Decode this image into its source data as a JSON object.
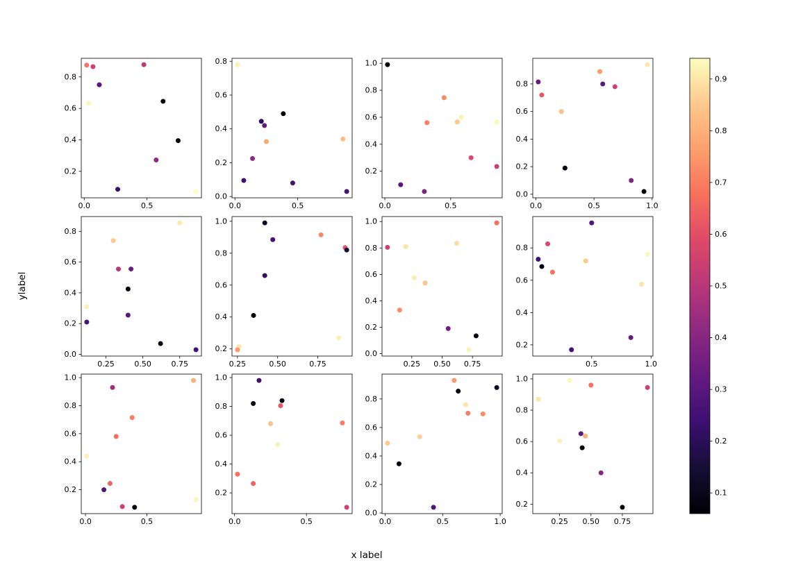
{
  "figure": {
    "background": "#ffffff"
  },
  "chart_data": {
    "type": "scatter",
    "title": "",
    "xlabel": "x label",
    "ylabel": "ylabel",
    "layout": {
      "rows": 3,
      "cols": 4,
      "grid": false,
      "shared_colorbar": true
    },
    "colorbar": {
      "position": "right",
      "colormap": "magma",
      "ticks": [
        0.1,
        0.2,
        0.3,
        0.4,
        0.5,
        0.6,
        0.7,
        0.8,
        0.9
      ],
      "tick_labels": [
        "0.1",
        "0.2",
        "0.3",
        "0.4",
        "0.5",
        "0.6",
        "0.7",
        "0.8",
        "0.9"
      ],
      "colormap_stops": [
        {
          "t": 0.0,
          "color": "#000004"
        },
        {
          "t": 0.1,
          "color": "#140e36"
        },
        {
          "t": 0.2,
          "color": "#3b0f70"
        },
        {
          "t": 0.3,
          "color": "#641a80"
        },
        {
          "t": 0.4,
          "color": "#8c2981"
        },
        {
          "t": 0.5,
          "color": "#b73779"
        },
        {
          "t": 0.6,
          "color": "#de4968"
        },
        {
          "t": 0.7,
          "color": "#f7705c"
        },
        {
          "t": 0.8,
          "color": "#fe9f6d"
        },
        {
          "t": 0.9,
          "color": "#fec98d"
        },
        {
          "t": 1.0,
          "color": "#fcfdbf"
        }
      ]
    },
    "subplots": [
      {
        "row": 0,
        "col": 0,
        "xticks": {
          "values": [
            0.0,
            0.5
          ],
          "labels": [
            "0.0",
            "0.5"
          ]
        },
        "yticks": {
          "values": [
            0.2,
            0.4,
            0.6,
            0.8
          ],
          "labels": [
            "0.2",
            "0.4",
            "0.6",
            "0.8"
          ]
        },
        "points": [
          {
            "x": 0.02,
            "y": 0.875,
            "c": 0.68
          },
          {
            "x": 0.07,
            "y": 0.865,
            "c": 0.55
          },
          {
            "x": 0.12,
            "y": 0.75,
            "c": 0.3
          },
          {
            "x": 0.035,
            "y": 0.632,
            "c": 0.93
          },
          {
            "x": 0.475,
            "y": 0.878,
            "c": 0.52
          },
          {
            "x": 0.628,
            "y": 0.645,
            "c": 0.07
          },
          {
            "x": 0.748,
            "y": 0.395,
            "c": 0.08
          },
          {
            "x": 0.573,
            "y": 0.272,
            "c": 0.42
          },
          {
            "x": 0.267,
            "y": 0.086,
            "c": 0.22
          },
          {
            "x": 0.89,
            "y": 0.072,
            "c": 0.94
          }
        ]
      },
      {
        "row": 0,
        "col": 1,
        "xticks": {
          "values": [
            0.0,
            0.5
          ],
          "labels": [
            "0.0",
            "0.5"
          ]
        },
        "yticks": {
          "values": [
            0.0,
            0.2,
            0.4,
            0.6,
            0.8
          ],
          "labels": [
            "0.0",
            "0.2",
            "0.4",
            "0.6",
            "0.8"
          ]
        },
        "points": [
          {
            "x": 0.02,
            "y": 0.78,
            "c": 0.92
          },
          {
            "x": 0.07,
            "y": 0.095,
            "c": 0.24
          },
          {
            "x": 0.14,
            "y": 0.225,
            "c": 0.42
          },
          {
            "x": 0.21,
            "y": 0.445,
            "c": 0.2
          },
          {
            "x": 0.235,
            "y": 0.42,
            "c": 0.33
          },
          {
            "x": 0.25,
            "y": 0.325,
            "c": 0.78
          },
          {
            "x": 0.385,
            "y": 0.49,
            "c": 0.07
          },
          {
            "x": 0.46,
            "y": 0.08,
            "c": 0.26
          },
          {
            "x": 0.86,
            "y": 0.34,
            "c": 0.82
          },
          {
            "x": 0.89,
            "y": 0.03,
            "c": 0.25
          }
        ]
      },
      {
        "row": 0,
        "col": 2,
        "xticks": {
          "values": [
            0.0,
            0.5
          ],
          "labels": [
            "0.0",
            "0.5"
          ]
        },
        "yticks": {
          "values": [
            0.2,
            0.4,
            0.6,
            0.8,
            1.0
          ],
          "labels": [
            "0.2",
            "0.4",
            "0.6",
            "0.8",
            "1.0"
          ]
        },
        "points": [
          {
            "x": 0.02,
            "y": 0.99,
            "c": 0.06
          },
          {
            "x": 0.12,
            "y": 0.1,
            "c": 0.3
          },
          {
            "x": 0.3,
            "y": 0.05,
            "c": 0.38
          },
          {
            "x": 0.32,
            "y": 0.56,
            "c": 0.7
          },
          {
            "x": 0.45,
            "y": 0.745,
            "c": 0.72
          },
          {
            "x": 0.55,
            "y": 0.565,
            "c": 0.85
          },
          {
            "x": 0.58,
            "y": 0.6,
            "c": 0.92
          },
          {
            "x": 0.655,
            "y": 0.3,
            "c": 0.58
          },
          {
            "x": 0.85,
            "y": 0.565,
            "c": 0.93
          },
          {
            "x": 0.85,
            "y": 0.235,
            "c": 0.55
          }
        ]
      },
      {
        "row": 0,
        "col": 3,
        "xticks": {
          "values": [
            0.0,
            0.5,
            1.0
          ],
          "labels": [
            "0.0",
            "0.5",
            "1.0"
          ]
        },
        "yticks": {
          "values": [
            0.0,
            0.2,
            0.4,
            0.6,
            0.8
          ],
          "labels": [
            "0.0",
            "0.2",
            "0.4",
            "0.6",
            "0.8"
          ]
        },
        "points": [
          {
            "x": 0.02,
            "y": 0.815,
            "c": 0.33
          },
          {
            "x": 0.05,
            "y": 0.72,
            "c": 0.62
          },
          {
            "x": 0.22,
            "y": 0.6,
            "c": 0.83
          },
          {
            "x": 0.25,
            "y": 0.19,
            "c": 0.07
          },
          {
            "x": 0.55,
            "y": 0.89,
            "c": 0.75
          },
          {
            "x": 0.575,
            "y": 0.8,
            "c": 0.3
          },
          {
            "x": 0.68,
            "y": 0.78,
            "c": 0.55
          },
          {
            "x": 0.82,
            "y": 0.1,
            "c": 0.38
          },
          {
            "x": 0.93,
            "y": 0.02,
            "c": 0.06
          },
          {
            "x": 0.96,
            "y": 0.94,
            "c": 0.9
          }
        ]
      },
      {
        "row": 1,
        "col": 0,
        "xticks": {
          "values": [
            0.25,
            0.5,
            0.75
          ],
          "labels": [
            "0.25",
            "0.50",
            "0.75"
          ]
        },
        "yticks": {
          "values": [
            0.0,
            0.2,
            0.4,
            0.6,
            0.8
          ],
          "labels": [
            "0.0",
            "0.2",
            "0.4",
            "0.6",
            "0.8"
          ]
        },
        "points": [
          {
            "x": 0.12,
            "y": 0.31,
            "c": 0.92
          },
          {
            "x": 0.12,
            "y": 0.21,
            "c": 0.27
          },
          {
            "x": 0.3,
            "y": 0.74,
            "c": 0.85
          },
          {
            "x": 0.335,
            "y": 0.555,
            "c": 0.5
          },
          {
            "x": 0.42,
            "y": 0.555,
            "c": 0.33
          },
          {
            "x": 0.4,
            "y": 0.425,
            "c": 0.07
          },
          {
            "x": 0.4,
            "y": 0.255,
            "c": 0.3
          },
          {
            "x": 0.75,
            "y": 0.855,
            "c": 0.91
          },
          {
            "x": 0.62,
            "y": 0.07,
            "c": 0.08
          },
          {
            "x": 0.86,
            "y": 0.03,
            "c": 0.25
          }
        ]
      },
      {
        "row": 1,
        "col": 1,
        "xticks": {
          "values": [
            0.25,
            0.5,
            0.75
          ],
          "labels": [
            "0.25",
            "0.50",
            "0.75"
          ]
        },
        "yticks": {
          "values": [
            0.2,
            0.4,
            0.6,
            0.8,
            1.0
          ],
          "labels": [
            "0.2",
            "0.4",
            "0.6",
            "0.8",
            "1.0"
          ]
        },
        "points": [
          {
            "x": 0.26,
            "y": 0.215,
            "c": 0.9
          },
          {
            "x": 0.25,
            "y": 0.195,
            "c": 0.75
          },
          {
            "x": 0.35,
            "y": 0.41,
            "c": 0.07
          },
          {
            "x": 0.42,
            "y": 0.99,
            "c": 0.12
          },
          {
            "x": 0.47,
            "y": 0.885,
            "c": 0.25
          },
          {
            "x": 0.42,
            "y": 0.66,
            "c": 0.22
          },
          {
            "x": 0.77,
            "y": 0.915,
            "c": 0.72
          },
          {
            "x": 0.92,
            "y": 0.835,
            "c": 0.62
          },
          {
            "x": 0.93,
            "y": 0.82,
            "c": 0.15
          },
          {
            "x": 0.88,
            "y": 0.27,
            "c": 0.92
          }
        ]
      },
      {
        "row": 1,
        "col": 2,
        "xticks": {
          "values": [
            0.25,
            0.5,
            0.75
          ],
          "labels": [
            "0.25",
            "0.50",
            "0.75"
          ]
        },
        "yticks": {
          "values": [
            0.0,
            0.2,
            0.4,
            0.6,
            0.8,
            1.0
          ],
          "labels": [
            "0.0",
            "0.2",
            "0.4",
            "0.6",
            "0.8",
            "1.0"
          ]
        },
        "points": [
          {
            "x": 0.05,
            "y": 0.805,
            "c": 0.55
          },
          {
            "x": 0.2,
            "y": 0.81,
            "c": 0.9
          },
          {
            "x": 0.62,
            "y": 0.835,
            "c": 0.88
          },
          {
            "x": 0.95,
            "y": 0.99,
            "c": 0.68
          },
          {
            "x": 0.27,
            "y": 0.575,
            "c": 0.91
          },
          {
            "x": 0.36,
            "y": 0.535,
            "c": 0.84
          },
          {
            "x": 0.15,
            "y": 0.33,
            "c": 0.73
          },
          {
            "x": 0.55,
            "y": 0.19,
            "c": 0.35
          },
          {
            "x": 0.78,
            "y": 0.135,
            "c": 0.08
          },
          {
            "x": 0.72,
            "y": 0.03,
            "c": 0.92
          }
        ]
      },
      {
        "row": 1,
        "col": 3,
        "xticks": {
          "values": [
            0.5,
            1.0
          ],
          "labels": [
            "0.5",
            "1.0"
          ]
        },
        "yticks": {
          "values": [
            0.2,
            0.4,
            0.6,
            0.8
          ],
          "labels": [
            "0.2",
            "0.4",
            "0.6",
            "0.8"
          ]
        },
        "points": [
          {
            "x": 0.05,
            "y": 0.73,
            "c": 0.25
          },
          {
            "x": 0.08,
            "y": 0.685,
            "c": 0.09
          },
          {
            "x": 0.13,
            "y": 0.825,
            "c": 0.58
          },
          {
            "x": 0.17,
            "y": 0.65,
            "c": 0.68
          },
          {
            "x": 0.5,
            "y": 0.955,
            "c": 0.28
          },
          {
            "x": 0.45,
            "y": 0.72,
            "c": 0.85
          },
          {
            "x": 0.97,
            "y": 0.76,
            "c": 0.93
          },
          {
            "x": 0.92,
            "y": 0.575,
            "c": 0.9
          },
          {
            "x": 0.33,
            "y": 0.17,
            "c": 0.25
          },
          {
            "x": 0.83,
            "y": 0.245,
            "c": 0.33
          }
        ]
      },
      {
        "row": 2,
        "col": 0,
        "xticks": {
          "values": [
            0.0,
            0.5
          ],
          "labels": [
            "0.0",
            "0.5"
          ]
        },
        "yticks": {
          "values": [
            0.2,
            0.4,
            0.6,
            0.8,
            1.0
          ],
          "labels": [
            "0.2",
            "0.4",
            "0.6",
            "0.8",
            "1.0"
          ]
        },
        "points": [
          {
            "x": 0.01,
            "y": 0.44,
            "c": 0.92
          },
          {
            "x": 0.22,
            "y": 0.93,
            "c": 0.45
          },
          {
            "x": 0.88,
            "y": 0.98,
            "c": 0.8
          },
          {
            "x": 0.38,
            "y": 0.715,
            "c": 0.7
          },
          {
            "x": 0.25,
            "y": 0.58,
            "c": 0.67
          },
          {
            "x": 0.15,
            "y": 0.2,
            "c": 0.28
          },
          {
            "x": 0.2,
            "y": 0.245,
            "c": 0.65
          },
          {
            "x": 0.3,
            "y": 0.08,
            "c": 0.55
          },
          {
            "x": 0.4,
            "y": 0.075,
            "c": 0.07
          },
          {
            "x": 0.9,
            "y": 0.13,
            "c": 0.93
          }
        ]
      },
      {
        "row": 2,
        "col": 1,
        "xticks": {
          "values": [
            0.0,
            0.5
          ],
          "labels": [
            "0.0",
            "0.5"
          ]
        },
        "yticks": {
          "values": [
            0.2,
            0.4,
            0.6,
            0.8,
            1.0
          ],
          "labels": [
            "0.2",
            "0.4",
            "0.6",
            "0.8",
            "1.0"
          ]
        },
        "points": [
          {
            "x": 0.17,
            "y": 0.98,
            "c": 0.25
          },
          {
            "x": 0.13,
            "y": 0.82,
            "c": 0.08
          },
          {
            "x": 0.33,
            "y": 0.84,
            "c": 0.1
          },
          {
            "x": 0.32,
            "y": 0.805,
            "c": 0.62
          },
          {
            "x": 0.25,
            "y": 0.68,
            "c": 0.83
          },
          {
            "x": 0.3,
            "y": 0.535,
            "c": 0.92
          },
          {
            "x": 0.75,
            "y": 0.685,
            "c": 0.7
          },
          {
            "x": 0.02,
            "y": 0.33,
            "c": 0.68
          },
          {
            "x": 0.13,
            "y": 0.265,
            "c": 0.65
          },
          {
            "x": 0.78,
            "y": 0.1,
            "c": 0.55
          }
        ]
      },
      {
        "row": 2,
        "col": 2,
        "xticks": {
          "values": [
            0.0,
            0.5,
            1.0
          ],
          "labels": [
            "0.0",
            "0.5",
            "1.0"
          ]
        },
        "yticks": {
          "values": [
            0.0,
            0.2,
            0.4,
            0.6,
            0.8
          ],
          "labels": [
            "0.0",
            "0.2",
            "0.4",
            "0.6",
            "0.8"
          ]
        },
        "points": [
          {
            "x": 0.6,
            "y": 0.93,
            "c": 0.75
          },
          {
            "x": 0.635,
            "y": 0.855,
            "c": 0.08
          },
          {
            "x": 0.7,
            "y": 0.76,
            "c": 0.9
          },
          {
            "x": 0.72,
            "y": 0.7,
            "c": 0.7
          },
          {
            "x": 0.85,
            "y": 0.695,
            "c": 0.73
          },
          {
            "x": 0.97,
            "y": 0.88,
            "c": 0.12
          },
          {
            "x": 0.02,
            "y": 0.49,
            "c": 0.85
          },
          {
            "x": 0.3,
            "y": 0.535,
            "c": 0.86
          },
          {
            "x": 0.12,
            "y": 0.345,
            "c": 0.07
          },
          {
            "x": 0.42,
            "y": 0.04,
            "c": 0.28
          }
        ]
      },
      {
        "row": 2,
        "col": 3,
        "xticks": {
          "values": [
            0.25,
            0.5,
            0.75
          ],
          "labels": [
            "0.25",
            "0.50",
            "0.75"
          ]
        },
        "yticks": {
          "values": [
            0.2,
            0.4,
            0.6,
            0.8,
            1.0
          ],
          "labels": [
            "0.2",
            "0.4",
            "0.6",
            "0.8",
            "1.0"
          ]
        },
        "points": [
          {
            "x": 0.08,
            "y": 0.87,
            "c": 0.9
          },
          {
            "x": 0.33,
            "y": 0.99,
            "c": 0.93
          },
          {
            "x": 0.5,
            "y": 0.96,
            "c": 0.68
          },
          {
            "x": 0.95,
            "y": 0.945,
            "c": 0.55
          },
          {
            "x": 0.25,
            "y": 0.605,
            "c": 0.92
          },
          {
            "x": 0.42,
            "y": 0.65,
            "c": 0.3
          },
          {
            "x": 0.455,
            "y": 0.635,
            "c": 0.8
          },
          {
            "x": 0.43,
            "y": 0.56,
            "c": 0.08
          },
          {
            "x": 0.58,
            "y": 0.4,
            "c": 0.4
          },
          {
            "x": 0.75,
            "y": 0.18,
            "c": 0.07
          }
        ]
      }
    ]
  }
}
